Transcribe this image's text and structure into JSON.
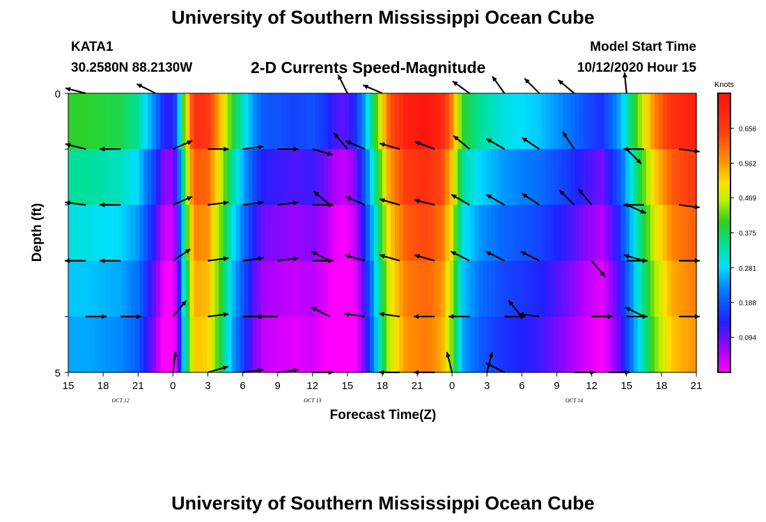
{
  "header": {
    "title": "University of Southern Mississippi Ocean Cube",
    "station_id": "KATA1",
    "station_coords": "30.2580N 88.2130W",
    "start_label": "Model Start Time",
    "start_value": "10/12/2020 Hour 15",
    "bottom_title": "University of Southern Mississippi Ocean Cube"
  },
  "chart_data": {
    "type": "heatmap",
    "title": "2-D Currents Speed-Magnitude",
    "xlabel": "Forecast Time(Z)",
    "ylabel": "Depth (ft)",
    "x_tick_labels": [
      "15",
      "18",
      "21",
      "0",
      "3",
      "6",
      "9",
      "12",
      "15",
      "18",
      "21",
      "0",
      "3",
      "6",
      "9",
      "12",
      "15",
      "18",
      "21"
    ],
    "date_labels": [
      {
        "label": "OCT 12",
        "at_tick": 1.5
      },
      {
        "label": "OCT 13",
        "at_tick": 7
      },
      {
        "label": "OCT 14",
        "at_tick": 14.5
      }
    ],
    "y_tick_labels": [
      "0",
      "5"
    ],
    "ylim": [
      0,
      5
    ],
    "depth_levels": 5,
    "colorbar": {
      "unit": "Knots",
      "range": [
        0.0,
        0.75
      ],
      "tick_labels": [
        "0.656",
        "0.562",
        "0.469",
        "0.375",
        "0.281",
        "0.188",
        "0.094"
      ],
      "tick_values": [
        0.656,
        0.562,
        0.469,
        0.375,
        0.281,
        0.188,
        0.094
      ]
    },
    "time_profile": [
      [
        0,
        0.3
      ],
      [
        0.5,
        0.3
      ],
      [
        1,
        0.29
      ],
      [
        1.5,
        0.28
      ],
      [
        2,
        0.24
      ],
      [
        2.2,
        0.19
      ],
      [
        2.5,
        0.12
      ],
      [
        2.7,
        0.05
      ],
      [
        2.9,
        0.02
      ],
      [
        3.1,
        0.08
      ],
      [
        3.3,
        0.32
      ],
      [
        3.6,
        0.58
      ],
      [
        4,
        0.57
      ],
      [
        4.4,
        0.42
      ],
      [
        4.7,
        0.3
      ],
      [
        5,
        0.22
      ],
      [
        5.3,
        0.14
      ],
      [
        5.6,
        0.09
      ],
      [
        6.5,
        0.07
      ],
      [
        7,
        0.08
      ],
      [
        7.4,
        0.05
      ],
      [
        7.6,
        0.02
      ],
      [
        7.9,
        0.0
      ],
      [
        8.2,
        0.04
      ],
      [
        8.5,
        0.15
      ],
      [
        8.8,
        0.3
      ],
      [
        9.2,
        0.52
      ],
      [
        9.7,
        0.62
      ],
      [
        10.3,
        0.64
      ],
      [
        10.7,
        0.6
      ],
      [
        11,
        0.48
      ],
      [
        11.3,
        0.3
      ],
      [
        11.8,
        0.24
      ],
      [
        12.5,
        0.2
      ],
      [
        13.5,
        0.17
      ],
      [
        14.3,
        0.12
      ],
      [
        14.8,
        0.08
      ],
      [
        15.3,
        0.05
      ],
      [
        15.8,
        0.15
      ],
      [
        16.3,
        0.32
      ],
      [
        16.8,
        0.48
      ],
      [
        17.3,
        0.58
      ],
      [
        18,
        0.62
      ]
    ],
    "depth_profile": [
      0.1,
      0.04,
      0.0,
      -0.03,
      -0.05,
      -0.07
    ],
    "arrows": [
      {
        "t": 0.5,
        "d": 0,
        "u": -0.8,
        "v": 0.2
      },
      {
        "t": 2.5,
        "d": 0,
        "u": -0.6,
        "v": 0.3
      },
      {
        "t": 8,
        "d": 0,
        "u": -0.3,
        "v": 0.6
      },
      {
        "t": 9,
        "d": 0,
        "u": -0.7,
        "v": 0.3
      },
      {
        "t": 11.5,
        "d": 0,
        "u": -0.7,
        "v": 0.5
      },
      {
        "t": 12.5,
        "d": 0,
        "u": -0.5,
        "v": 0.7
      },
      {
        "t": 13.5,
        "d": 0,
        "u": -0.6,
        "v": 0.6
      },
      {
        "t": 14.5,
        "d": 0,
        "u": -0.6,
        "v": 0.5
      },
      {
        "t": 16,
        "d": 0,
        "u": -0.1,
        "v": 1.0
      },
      {
        "t": 0.5,
        "d": 1,
        "u": -0.8,
        "v": 0.2
      },
      {
        "t": 1.5,
        "d": 1,
        "u": -0.8,
        "v": 0.0
      },
      {
        "t": 3,
        "d": 1,
        "u": 0.7,
        "v": 0.3
      },
      {
        "t": 4,
        "d": 1,
        "u": 0.8,
        "v": 0.0
      },
      {
        "t": 5,
        "d": 1,
        "u": 0.8,
        "v": 0.1
      },
      {
        "t": 6,
        "d": 1,
        "u": 0.8,
        "v": 0.0
      },
      {
        "t": 7,
        "d": 1,
        "u": 0.7,
        "v": -0.2
      },
      {
        "t": 8,
        "d": 1,
        "u": -0.5,
        "v": 0.6
      },
      {
        "t": 8.5,
        "d": 1,
        "u": -0.7,
        "v": 0.3
      },
      {
        "t": 9.5,
        "d": 1,
        "u": -0.7,
        "v": 0.2
      },
      {
        "t": 10.5,
        "d": 1,
        "u": -0.8,
        "v": 0.3
      },
      {
        "t": 11.5,
        "d": 1,
        "u": -0.6,
        "v": 0.5
      },
      {
        "t": 12.5,
        "d": 1,
        "u": -0.7,
        "v": 0.4
      },
      {
        "t": 13.5,
        "d": 1,
        "u": -0.6,
        "v": 0.4
      },
      {
        "t": 14.5,
        "d": 1,
        "u": -0.4,
        "v": 0.6
      },
      {
        "t": 16,
        "d": 1,
        "u": 0.6,
        "v": -0.6
      },
      {
        "t": 16.5,
        "d": 1,
        "u": -0.8,
        "v": 0.0
      },
      {
        "t": 17.5,
        "d": 1,
        "u": 0.8,
        "v": -0.1
      },
      {
        "t": 0.5,
        "d": 2,
        "u": -0.8,
        "v": 0.1
      },
      {
        "t": 1.5,
        "d": 2,
        "u": -0.8,
        "v": 0.0
      },
      {
        "t": 3,
        "d": 2,
        "u": 0.7,
        "v": 0.3
      },
      {
        "t": 4,
        "d": 2,
        "u": 0.8,
        "v": 0.1
      },
      {
        "t": 5,
        "d": 2,
        "u": 0.8,
        "v": 0.1
      },
      {
        "t": 6,
        "d": 2,
        "u": 0.8,
        "v": 0.1
      },
      {
        "t": 7,
        "d": 2,
        "u": 0.8,
        "v": 0.0
      },
      {
        "t": 7.5,
        "d": 2,
        "u": -0.6,
        "v": 0.5
      },
      {
        "t": 8.5,
        "d": 2,
        "u": -0.7,
        "v": 0.3
      },
      {
        "t": 9.5,
        "d": 2,
        "u": -0.7,
        "v": 0.2
      },
      {
        "t": 10.5,
        "d": 2,
        "u": -0.8,
        "v": 0.2
      },
      {
        "t": 11.5,
        "d": 2,
        "u": -0.7,
        "v": 0.4
      },
      {
        "t": 12.5,
        "d": 2,
        "u": -0.7,
        "v": 0.4
      },
      {
        "t": 13.5,
        "d": 2,
        "u": -0.6,
        "v": 0.4
      },
      {
        "t": 14.5,
        "d": 2,
        "u": -0.5,
        "v": 0.5
      },
      {
        "t": 15,
        "d": 2,
        "u": -0.5,
        "v": 0.6
      },
      {
        "t": 16,
        "d": 2,
        "u": 0.7,
        "v": -0.3
      },
      {
        "t": 16.5,
        "d": 2,
        "u": -0.8,
        "v": 0.0
      },
      {
        "t": 17.5,
        "d": 2,
        "u": 0.8,
        "v": -0.1
      },
      {
        "t": 0.5,
        "d": 3,
        "u": -0.8,
        "v": 0.0
      },
      {
        "t": 1.5,
        "d": 3,
        "u": -0.8,
        "v": 0.0
      },
      {
        "t": 3,
        "d": 3,
        "u": 0.6,
        "v": 0.4
      },
      {
        "t": 4,
        "d": 3,
        "u": 0.8,
        "v": 0.1
      },
      {
        "t": 5,
        "d": 3,
        "u": 0.8,
        "v": 0.1
      },
      {
        "t": 6,
        "d": 3,
        "u": 0.8,
        "v": 0.1
      },
      {
        "t": 7,
        "d": 3,
        "u": 0.8,
        "v": 0.0
      },
      {
        "t": 7.5,
        "d": 3,
        "u": -0.6,
        "v": 0.3
      },
      {
        "t": 8.5,
        "d": 3,
        "u": -0.7,
        "v": 0.2
      },
      {
        "t": 9.5,
        "d": 3,
        "u": -0.7,
        "v": 0.2
      },
      {
        "t": 10.5,
        "d": 3,
        "u": -0.7,
        "v": 0.2
      },
      {
        "t": 11.5,
        "d": 3,
        "u": -0.6,
        "v": 0.3
      },
      {
        "t": 12.5,
        "d": 3,
        "u": -0.6,
        "v": 0.3
      },
      {
        "t": 13.5,
        "d": 3,
        "u": -0.6,
        "v": 0.3
      },
      {
        "t": 15,
        "d": 3,
        "u": 0.5,
        "v": -0.6
      },
      {
        "t": 16,
        "d": 3,
        "u": 0.8,
        "v": 0.0
      },
      {
        "t": 16.5,
        "d": 3,
        "u": -0.7,
        "v": 0.2
      },
      {
        "t": 17.5,
        "d": 3,
        "u": 0.8,
        "v": 0.0
      },
      {
        "t": 0.5,
        "d": 4,
        "u": 0.8,
        "v": 0.0
      },
      {
        "t": 1.5,
        "d": 4,
        "u": 0.8,
        "v": 0.0
      },
      {
        "t": 3,
        "d": 4,
        "u": 0.5,
        "v": 0.6
      },
      {
        "t": 4,
        "d": 4,
        "u": 0.8,
        "v": 0.1
      },
      {
        "t": 5,
        "d": 4,
        "u": 0.8,
        "v": 0.0
      },
      {
        "t": 6,
        "d": 4,
        "u": -0.8,
        "v": 0.0
      },
      {
        "t": 7.5,
        "d": 4,
        "u": -0.6,
        "v": 0.3
      },
      {
        "t": 8.5,
        "d": 4,
        "u": -0.7,
        "v": 0.1
      },
      {
        "t": 9.5,
        "d": 4,
        "u": -0.7,
        "v": 0.1
      },
      {
        "t": 10.5,
        "d": 4,
        "u": -0.7,
        "v": 0.0
      },
      {
        "t": 11.5,
        "d": 4,
        "u": -0.8,
        "v": 0.0
      },
      {
        "t": 12.5,
        "d": 4,
        "u": 0.8,
        "v": 0.0
      },
      {
        "t": 13,
        "d": 4,
        "u": -0.5,
        "v": 0.6
      },
      {
        "t": 13.5,
        "d": 4,
        "u": -0.8,
        "v": 0.1
      },
      {
        "t": 15,
        "d": 4,
        "u": 0.8,
        "v": 0.0
      },
      {
        "t": 16,
        "d": 4,
        "u": 0.8,
        "v": 0.0
      },
      {
        "t": 16.5,
        "d": 4,
        "u": -0.6,
        "v": 0.3
      },
      {
        "t": 17.5,
        "d": 4,
        "u": 0.8,
        "v": 0.0
      },
      {
        "t": 3,
        "d": 5,
        "u": 0.1,
        "v": 0.8
      },
      {
        "t": 4,
        "d": 5,
        "u": 0.7,
        "v": 0.2
      },
      {
        "t": 5,
        "d": 5,
        "u": 0.8,
        "v": 0.1
      },
      {
        "t": 6,
        "d": 5,
        "u": 0.8,
        "v": 0.1
      },
      {
        "t": 7,
        "d": 5,
        "u": 0.8,
        "v": 0.0
      },
      {
        "t": 9.5,
        "d": 5,
        "u": -0.8,
        "v": 0.0
      },
      {
        "t": 10.5,
        "d": 5,
        "u": -0.8,
        "v": 0.0
      },
      {
        "t": 11,
        "d": 5,
        "u": -0.2,
        "v": 0.8
      },
      {
        "t": 12,
        "d": 5,
        "u": 0.2,
        "v": 0.8
      },
      {
        "t": 12.5,
        "d": 5,
        "u": -0.6,
        "v": 0.3
      },
      {
        "t": 14.5,
        "d": 5,
        "u": 0.8,
        "v": 0.0
      },
      {
        "t": 15.5,
        "d": 5,
        "u": 0.8,
        "v": 0.0
      }
    ]
  }
}
